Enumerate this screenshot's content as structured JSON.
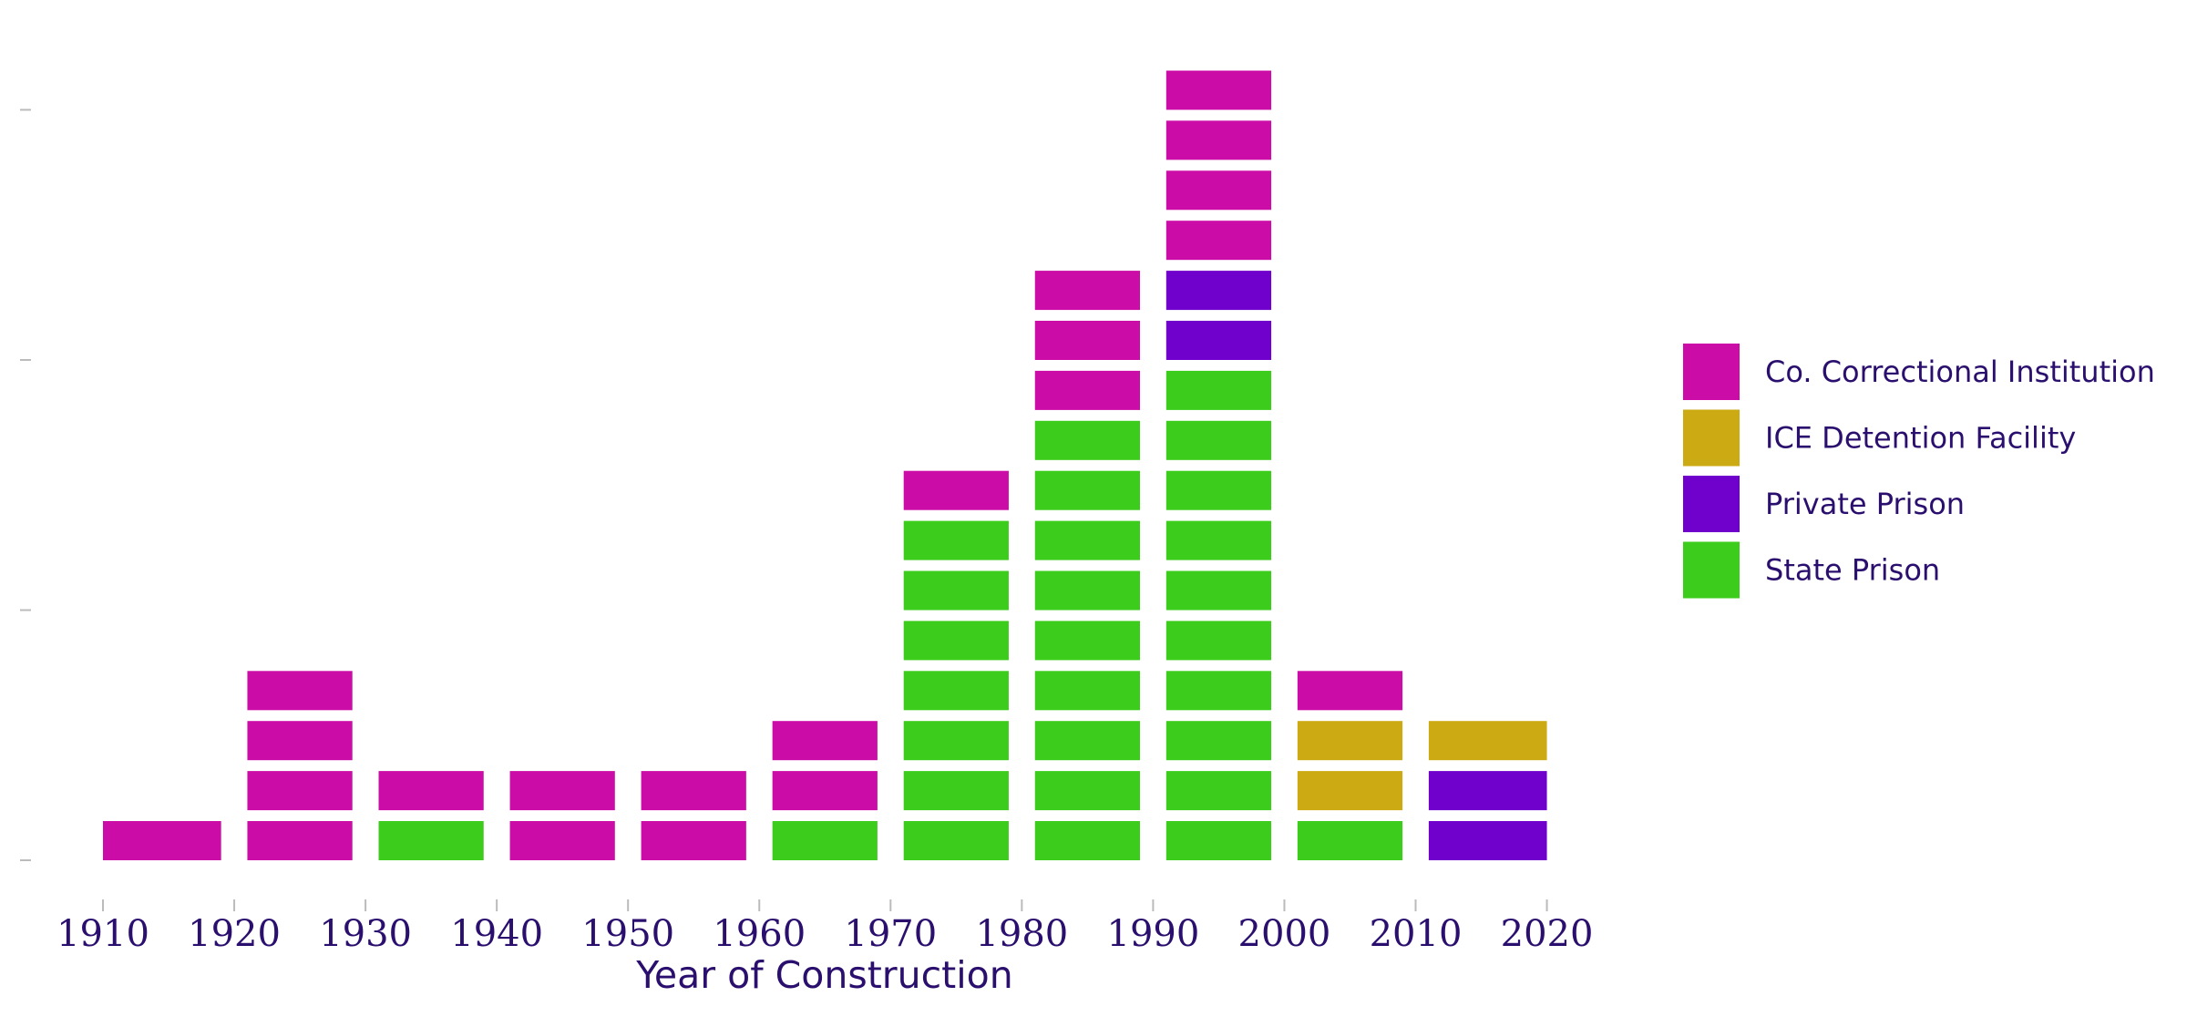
{
  "chart_data": {
    "type": "bar",
    "subtype": "stacked-waffle-histogram",
    "title": "",
    "xlabel": "Year of Construction",
    "ylabel": "",
    "x_ticks": [
      "1910",
      "1920",
      "1930",
      "1940",
      "1950",
      "1960",
      "1970",
      "1980",
      "1990",
      "2000",
      "2010",
      "2020"
    ],
    "y_ticks_labeled": false,
    "y_tick_values": [
      0,
      5,
      10,
      15
    ],
    "ylim": [
      0,
      16
    ],
    "grid": false,
    "legend_position": "right",
    "bins": [
      {
        "start": 1910,
        "end": 1919
      },
      {
        "start": 1921,
        "end": 1929
      },
      {
        "start": 1931,
        "end": 1939
      },
      {
        "start": 1941,
        "end": 1949
      },
      {
        "start": 1951,
        "end": 1959
      },
      {
        "start": 1961,
        "end": 1969
      },
      {
        "start": 1971,
        "end": 1979
      },
      {
        "start": 1981,
        "end": 1989
      },
      {
        "start": 1991,
        "end": 1999
      },
      {
        "start": 2001,
        "end": 2009
      },
      {
        "start": 2011,
        "end": 2020
      }
    ],
    "series": [
      {
        "name": "State Prison",
        "color": "#3ccc1b",
        "values": [
          0,
          0,
          1,
          0,
          0,
          1,
          7,
          9,
          10,
          1,
          0
        ]
      },
      {
        "name": "Private Prison",
        "color": "#7000cc",
        "values": [
          0,
          0,
          0,
          0,
          0,
          0,
          0,
          0,
          2,
          0,
          2
        ]
      },
      {
        "name": "ICE Detention Facility",
        "color": "#ccaa14",
        "values": [
          0,
          0,
          0,
          0,
          0,
          0,
          0,
          0,
          0,
          2,
          1
        ]
      },
      {
        "name": "Co. Correctional Institution",
        "color": "#cc0ca6",
        "values": [
          1,
          4,
          1,
          2,
          2,
          2,
          1,
          3,
          4,
          1,
          0
        ]
      }
    ],
    "legend_order": [
      "Co. Correctional Institution",
      "ICE Detention Facility",
      "Private Prison",
      "State Prison"
    ],
    "colors": {
      "text": "#2a0f6e",
      "axis_tick": "#bbbbbb"
    }
  }
}
